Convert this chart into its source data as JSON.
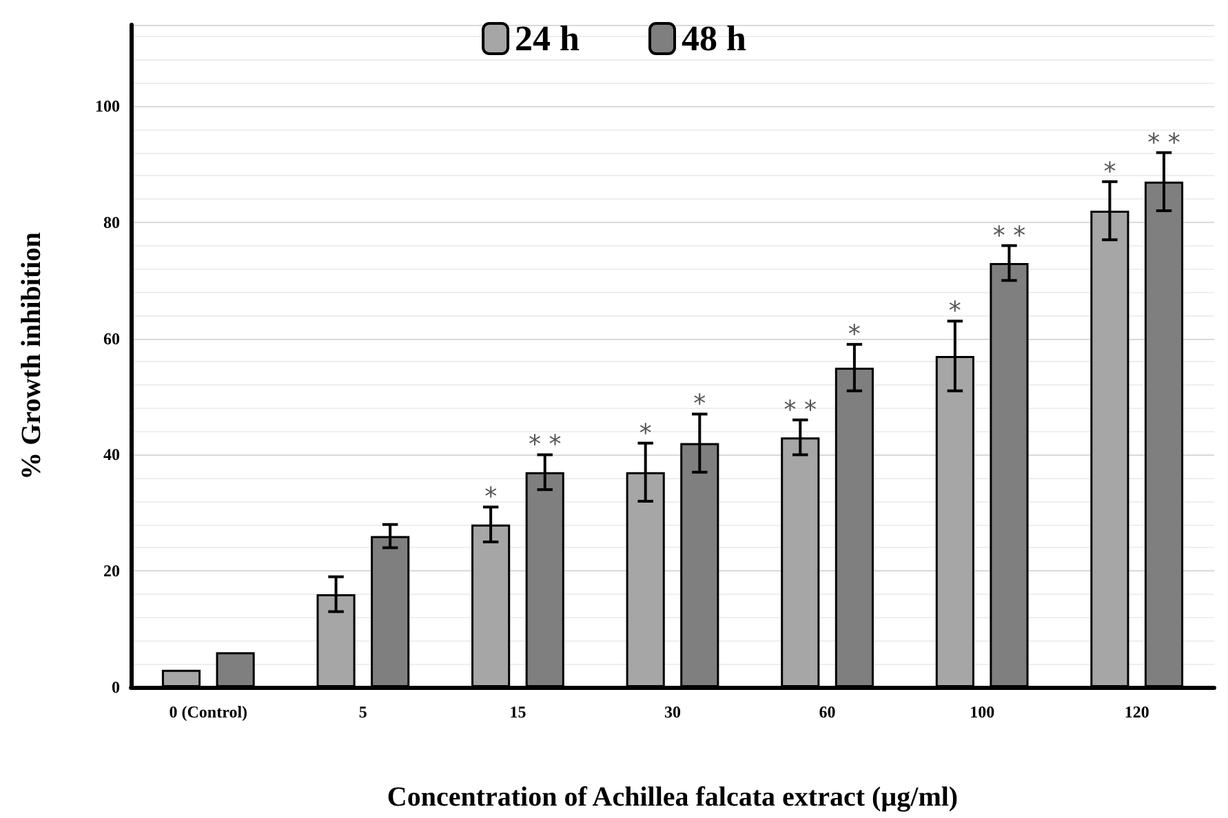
{
  "chart_data": {
    "type": "bar",
    "xlabel": "Concentration of Achillea falcata extract (µg/ml)",
    "ylabel": "% Growth inhibition",
    "categories": [
      "0 (Control)",
      "5",
      "15",
      "30",
      "60",
      "100",
      "120"
    ],
    "series": [
      {
        "name": "24 h",
        "color": "#a6a6a6",
        "values": [
          3,
          16,
          28,
          37,
          43,
          57,
          82
        ],
        "errors": [
          null,
          3,
          3,
          5,
          3,
          6,
          5
        ],
        "value_labels": [
          null,
          null,
          "*",
          "*",
          "* *",
          "*",
          "*"
        ]
      },
      {
        "name": "48 h",
        "color": "#7f7f7f",
        "values": [
          6,
          26,
          37,
          42,
          55,
          73,
          87
        ],
        "errors": [
          null,
          2,
          3,
          5,
          4,
          3,
          5
        ],
        "value_labels": [
          null,
          null,
          "* *",
          "*",
          "*",
          "* *",
          "* *"
        ]
      }
    ],
    "ylim": [
      0,
      114
    ],
    "yticks": [
      0,
      20,
      40,
      60,
      80,
      100
    ],
    "grid": "y",
    "legend": "top"
  }
}
